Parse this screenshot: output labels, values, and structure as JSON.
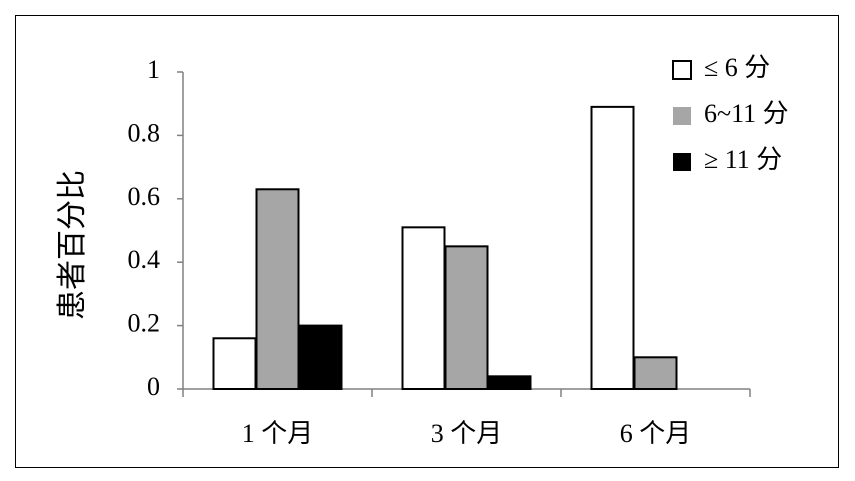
{
  "chart_data": {
    "type": "bar",
    "y_label": "患者百分比",
    "categories": [
      "1 个月",
      "3 个月",
      "6 个月"
    ],
    "series": [
      {
        "name": "≤ 6 分",
        "color": "#ffffff",
        "values": [
          0.16,
          0.51,
          0.89
        ]
      },
      {
        "name": "6~11 分",
        "color": "#a6a6a6",
        "values": [
          0.63,
          0.45,
          0.1
        ]
      },
      {
        "name": "≥ 11 分",
        "color": "#000000",
        "values": [
          0.2,
          0.04,
          null
        ]
      }
    ],
    "edgecolor": "#000000",
    "ylim": [
      0,
      1
    ],
    "yticks": [
      0,
      0.2,
      0.4,
      0.6,
      0.8,
      1
    ],
    "grid": false,
    "legend": "upper right"
  }
}
